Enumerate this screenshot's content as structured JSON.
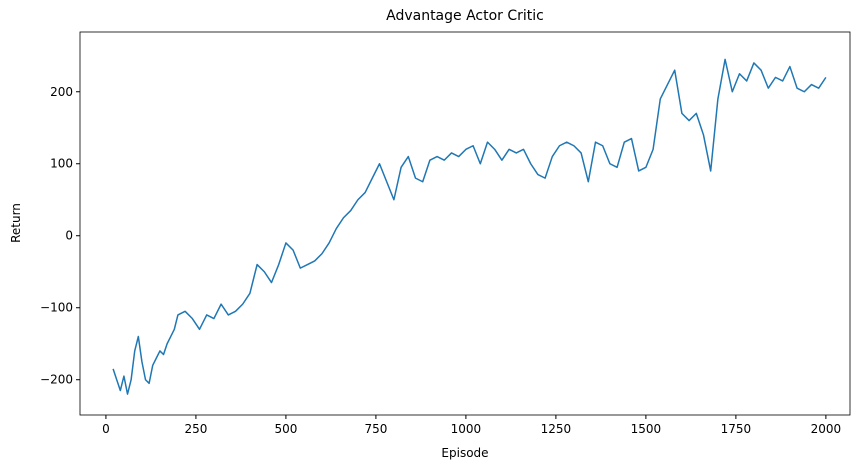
{
  "chart_data": {
    "type": "line",
    "title": "Advantage Actor Critic",
    "xlabel": "Episode",
    "ylabel": "Return",
    "x": [
      20,
      30,
      40,
      50,
      60,
      70,
      80,
      90,
      100,
      110,
      120,
      130,
      140,
      150,
      160,
      170,
      180,
      190,
      200,
      220,
      240,
      260,
      280,
      300,
      320,
      340,
      360,
      380,
      400,
      420,
      440,
      460,
      480,
      500,
      520,
      540,
      560,
      580,
      600,
      620,
      640,
      660,
      680,
      700,
      720,
      740,
      760,
      780,
      800,
      820,
      840,
      860,
      880,
      900,
      920,
      940,
      960,
      980,
      1000,
      1020,
      1040,
      1060,
      1080,
      1100,
      1120,
      1140,
      1160,
      1180,
      1200,
      1220,
      1240,
      1260,
      1280,
      1300,
      1320,
      1340,
      1360,
      1380,
      1400,
      1420,
      1440,
      1460,
      1480,
      1500,
      1520,
      1540,
      1560,
      1580,
      1600,
      1620,
      1640,
      1660,
      1680,
      1700,
      1720,
      1740,
      1760,
      1780,
      1800,
      1820,
      1840,
      1860,
      1880,
      1900,
      1920,
      1940,
      1960,
      1980,
      2000
    ],
    "series": [
      {
        "name": "Return",
        "color": "#1f77b4",
        "values": [
          -185,
          -200,
          -215,
          -195,
          -220,
          -200,
          -160,
          -140,
          -175,
          -200,
          -205,
          -180,
          -170,
          -160,
          -165,
          -150,
          -140,
          -130,
          -110,
          -105,
          -115,
          -130,
          -110,
          -115,
          -95,
          -110,
          -105,
          -95,
          -80,
          -40,
          -50,
          -65,
          -40,
          -10,
          -20,
          -45,
          -40,
          -35,
          -25,
          -10,
          10,
          25,
          35,
          50,
          60,
          80,
          100,
          75,
          50,
          95,
          110,
          80,
          75,
          105,
          110,
          105,
          115,
          110,
          120,
          125,
          100,
          130,
          120,
          105,
          120,
          115,
          120,
          100,
          85,
          80,
          110,
          125,
          130,
          125,
          115,
          75,
          130,
          125,
          100,
          95,
          130,
          135,
          90,
          95,
          120,
          190,
          210,
          230,
          170,
          160,
          170,
          140,
          90,
          190,
          245,
          200,
          225,
          215,
          240,
          230,
          205,
          220,
          215,
          235,
          205,
          200,
          210,
          205,
          220
        ]
      }
    ],
    "xlim": [
      -72,
      2067
    ],
    "ylim": [
      -249,
      283
    ],
    "xticks": [
      0,
      250,
      500,
      750,
      1000,
      1250,
      1500,
      1750,
      2000
    ],
    "yticks": [
      {
        "value": -200,
        "label": "−200"
      },
      {
        "value": -100,
        "label": "−100"
      },
      0,
      100,
      200
    ],
    "grid": false
  }
}
